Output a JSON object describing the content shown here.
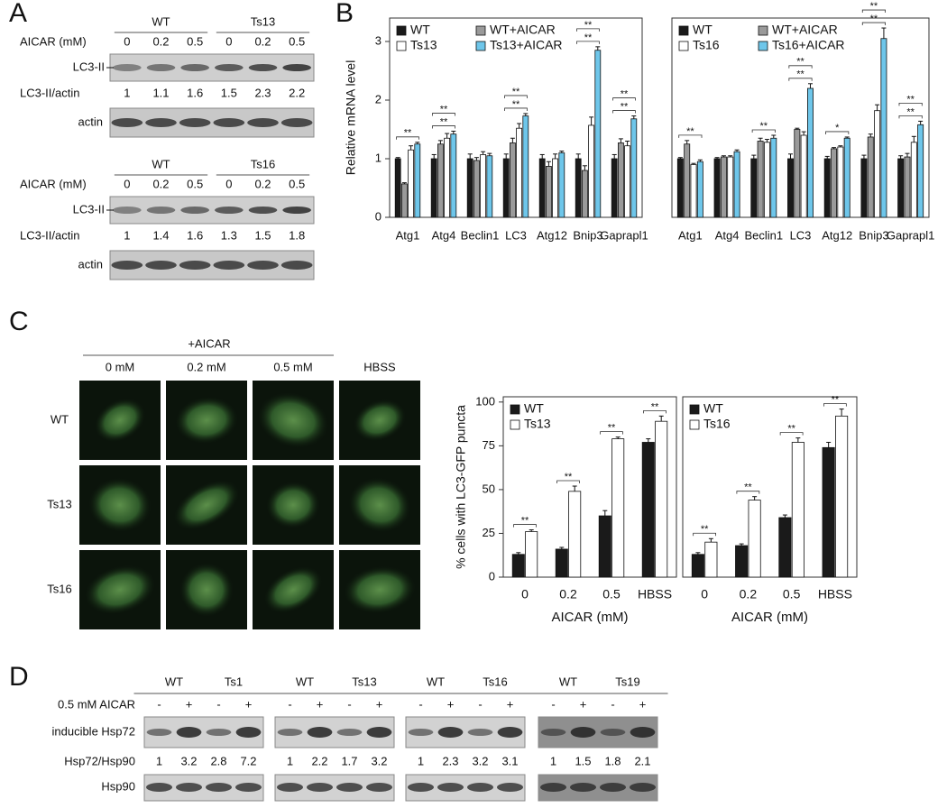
{
  "panel_labels": [
    "A",
    "B",
    "C",
    "D"
  ],
  "panel_a": {
    "blots": [
      {
        "groups": [
          "WT",
          "Ts13"
        ],
        "treatment_label": "AICAR (mM)",
        "doses": [
          0,
          0.2,
          0.5,
          0,
          0.2,
          0.5
        ],
        "band_label": "LC3-II",
        "ratio_label": "LC3-II/actin",
        "ratios": [
          1,
          1.1,
          1.6,
          1.5,
          2.3,
          2.2
        ],
        "loading_label": "actin"
      },
      {
        "groups": [
          "WT",
          "Ts16"
        ],
        "treatment_label": "AICAR (mM)",
        "doses": [
          0,
          0.2,
          0.5,
          0,
          0.2,
          0.5
        ],
        "band_label": "LC3-II",
        "ratio_label": "LC3-II/actin",
        "ratios": [
          1,
          1.4,
          1.6,
          1.3,
          1.5,
          1.8
        ],
        "loading_label": "actin"
      }
    ]
  },
  "panel_c": {
    "treatment_label": "+AICAR",
    "columns": [
      "0 mM",
      "0.2 mM",
      "0.5 mM",
      "HBSS"
    ],
    "rows": [
      "WT",
      "Ts13",
      "Ts16"
    ]
  },
  "panel_d": {
    "treatment_label": "0.5 mM AICAR",
    "band_label": "inducible Hsp72",
    "ratio_label": "Hsp72/Hsp90",
    "loading_label": "Hsp90",
    "blots": [
      {
        "groups": [
          "WT",
          "Ts1"
        ],
        "lanes": [
          "-",
          "+",
          "-",
          "+"
        ],
        "ratios": [
          1,
          3.2,
          2.8,
          7.2
        ]
      },
      {
        "groups": [
          "WT",
          "Ts13"
        ],
        "lanes": [
          "-",
          "+",
          "-",
          "+"
        ],
        "ratios": [
          1,
          2.2,
          1.7,
          3.2
        ]
      },
      {
        "groups": [
          "WT",
          "Ts16"
        ],
        "lanes": [
          "-",
          "+",
          "-",
          "+"
        ],
        "ratios": [
          1,
          2.3,
          3.2,
          3.1
        ]
      },
      {
        "groups": [
          "WT",
          "Ts19"
        ],
        "lanes": [
          "-",
          "+",
          "-",
          "+"
        ],
        "ratios": [
          1,
          1.5,
          1.8,
          2.1
        ]
      }
    ]
  },
  "chart_data": [
    {
      "type": "bar",
      "ylabel": "Relative mRNA level",
      "categories": [
        "Atg1",
        "Atg4",
        "Beclin1",
        "LC3",
        "Atg12",
        "Bnip3",
        "Gaprapl1"
      ],
      "series": [
        {
          "name": "WT",
          "color": "#1a1a1a",
          "values": [
            1.0,
            1.0,
            1.0,
            1.0,
            1.0,
            1.0,
            1.0
          ],
          "errors": [
            0.02,
            0.07,
            0.08,
            0.08,
            0.07,
            0.08,
            0.07
          ]
        },
        {
          "name": "WT+AICAR",
          "color": "#9a9a9a",
          "values": [
            0.57,
            1.25,
            0.97,
            1.27,
            0.87,
            0.8,
            1.27
          ],
          "errors": [
            0.02,
            0.06,
            0.05,
            0.08,
            0.08,
            0.08,
            0.07
          ]
        },
        {
          "name": "Ts13",
          "color": "#ffffff",
          "values": [
            1.15,
            1.35,
            1.07,
            1.52,
            1.0,
            1.57,
            1.22
          ],
          "errors": [
            0.07,
            0.08,
            0.05,
            0.08,
            0.08,
            0.14,
            0.08
          ]
        },
        {
          "name": "Ts13+AICAR",
          "color": "#6ec6ea",
          "values": [
            1.25,
            1.42,
            1.05,
            1.73,
            1.1,
            2.85,
            1.68
          ],
          "errors": [
            0.03,
            0.05,
            0.04,
            0.04,
            0.03,
            0.06,
            0.05
          ]
        }
      ],
      "ylim": [
        0,
        3.4
      ],
      "yticks": [
        0,
        1,
        2,
        3
      ],
      "annotations": [
        {
          "category": "Atg1",
          "label": "**"
        },
        {
          "category": "Atg4",
          "label": "**"
        },
        {
          "category": "Atg4",
          "label": "**"
        },
        {
          "category": "LC3",
          "label": "**"
        },
        {
          "category": "LC3",
          "label": "**"
        },
        {
          "category": "Bnip3",
          "label": "**"
        },
        {
          "category": "Bnip3",
          "label": "**"
        },
        {
          "category": "Gaprapl1",
          "label": "**"
        },
        {
          "category": "Gaprapl1",
          "label": "**"
        }
      ]
    },
    {
      "type": "bar",
      "categories": [
        "Atg1",
        "Atg4",
        "Beclin1",
        "LC3",
        "Atg12",
        "Bnip3",
        "Gaprapl1"
      ],
      "series": [
        {
          "name": "WT",
          "color": "#1a1a1a",
          "values": [
            1.0,
            1.0,
            1.0,
            1.0,
            1.0,
            1.0,
            1.0
          ],
          "errors": [
            0.02,
            0.02,
            0.06,
            0.08,
            0.04,
            0.06,
            0.05
          ]
        },
        {
          "name": "WT+AICAR",
          "color": "#9a9a9a",
          "values": [
            1.25,
            1.03,
            1.3,
            1.5,
            1.17,
            1.37,
            1.03
          ],
          "errors": [
            0.06,
            0.02,
            0.05,
            0.02,
            0.02,
            0.05,
            0.06
          ]
        },
        {
          "name": "Ts16",
          "color": "#ffffff",
          "values": [
            0.9,
            1.03,
            1.28,
            1.4,
            1.2,
            1.82,
            1.28
          ],
          "errors": [
            0.02,
            0.02,
            0.05,
            0.06,
            0.02,
            0.1,
            0.1
          ]
        },
        {
          "name": "Ts16+AICAR",
          "color": "#6ec6ea",
          "values": [
            0.95,
            1.12,
            1.35,
            2.2,
            1.35,
            3.05,
            1.58
          ],
          "errors": [
            0.03,
            0.03,
            0.05,
            0.08,
            0.02,
            0.18,
            0.06
          ]
        }
      ],
      "ylim": [
        0,
        3.4
      ],
      "annotations": [
        {
          "category": "Atg1",
          "label": "**"
        },
        {
          "category": "Beclin1",
          "label": "**"
        },
        {
          "category": "LC3",
          "label": "**"
        },
        {
          "category": "LC3",
          "label": "**"
        },
        {
          "category": "Atg12",
          "label": "*"
        },
        {
          "category": "Bnip3",
          "label": "**"
        },
        {
          "category": "Bnip3",
          "label": "**"
        },
        {
          "category": "Gaprapl1",
          "label": "**"
        },
        {
          "category": "Gaprapl1",
          "label": "**"
        }
      ]
    },
    {
      "type": "bar",
      "ylabel": "% cells with LC3-GFP puncta",
      "xlabel": "AICAR (mM)",
      "categories": [
        "0",
        "0.2",
        "0.5",
        "HBSS"
      ],
      "series": [
        {
          "name": "WT",
          "color": "#1a1a1a",
          "values": [
            13,
            16,
            35,
            77
          ],
          "errors": [
            1,
            1,
            3,
            2
          ]
        },
        {
          "name": "Ts13",
          "color": "#ffffff",
          "values": [
            26,
            49,
            79,
            89
          ],
          "errors": [
            1,
            3,
            1,
            3
          ]
        }
      ],
      "ylim": [
        0,
        103
      ],
      "yticks": [
        0,
        25,
        50,
        75,
        100
      ],
      "annotations": [
        {
          "category": "0",
          "label": "**"
        },
        {
          "category": "0.2",
          "label": "**"
        },
        {
          "category": "0.5",
          "label": "**"
        },
        {
          "category": "HBSS",
          "label": "**"
        }
      ]
    },
    {
      "type": "bar",
      "xlabel": "AICAR (mM)",
      "categories": [
        "0",
        "0.2",
        "0.5",
        "HBSS"
      ],
      "series": [
        {
          "name": "WT",
          "color": "#1a1a1a",
          "values": [
            13,
            18,
            34,
            74
          ],
          "errors": [
            1,
            1,
            1.5,
            3
          ]
        },
        {
          "name": "Ts16",
          "color": "#ffffff",
          "values": [
            20,
            44,
            77,
            92
          ],
          "errors": [
            2,
            2,
            2.5,
            4
          ]
        }
      ],
      "ylim": [
        0,
        103
      ],
      "annotations": [
        {
          "category": "0",
          "label": "**"
        },
        {
          "category": "0.2",
          "label": "**"
        },
        {
          "category": "0.5",
          "label": "**"
        },
        {
          "category": "HBSS",
          "label": "**"
        }
      ]
    }
  ]
}
